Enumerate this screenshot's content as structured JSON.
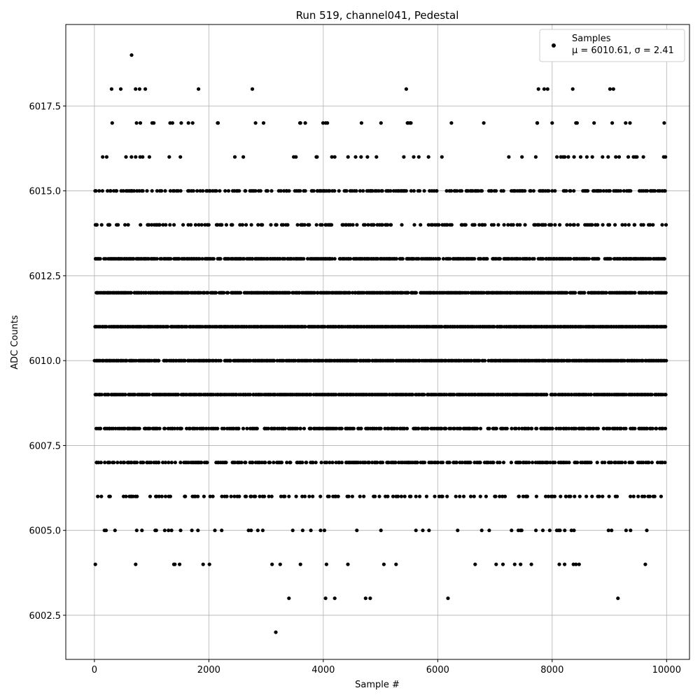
{
  "chart_data": {
    "type": "scatter",
    "title": "Run 519, channel041, Pedestal",
    "xlabel": "Sample #",
    "ylabel": "ADC Counts",
    "xlim": [
      -500,
      10400
    ],
    "ylim": [
      6001.2,
      6019.9
    ],
    "x_ticks": [
      0,
      2000,
      4000,
      6000,
      8000,
      10000
    ],
    "y_ticks": [
      6002.5,
      6005.0,
      6007.5,
      6010.0,
      6012.5,
      6015.0,
      6017.5
    ],
    "x_tick_labels": [
      "0",
      "2000",
      "4000",
      "6000",
      "8000",
      "10000"
    ],
    "y_tick_labels": [
      "6002.5",
      "6005.0",
      "6007.5",
      "6010.0",
      "6012.5",
      "6015.0",
      "6017.5"
    ],
    "grid": true,
    "marker_color": "#000000",
    "legend": {
      "placement": "top-right",
      "series_name": "Samples",
      "stats_label": "μ = 6010.61, σ = 2.41"
    },
    "x_range": [
      0,
      9999
    ],
    "levels": [
      {
        "y": 6009,
        "density": 0.9
      },
      {
        "y": 6010,
        "density": 0.9
      },
      {
        "y": 6011,
        "density": 0.95
      },
      {
        "y": 6012,
        "density": 0.85
      },
      {
        "y": 6013,
        "density": 0.8
      },
      {
        "y": 6008,
        "density": 0.62
      },
      {
        "y": 6015,
        "density": 0.5
      },
      {
        "y": 6007,
        "density": 0.52
      },
      {
        "y": 6014,
        "density": 0.32
      },
      {
        "y": 6006,
        "density": 0.26
      },
      {
        "y": 6016,
        "density": 0.1
      },
      {
        "y": 6005,
        "density": 0.1
      },
      {
        "y": 6017,
        "density": 0.06
      },
      {
        "y": 6004,
        "density": 0.04
      }
    ],
    "sparse_points": [
      {
        "x": 650,
        "y": 6019
      },
      {
        "x": 300,
        "y": 6018
      },
      {
        "x": 460,
        "y": 6018
      },
      {
        "x": 720,
        "y": 6018
      },
      {
        "x": 790,
        "y": 6018
      },
      {
        "x": 890,
        "y": 6018
      },
      {
        "x": 1820,
        "y": 6018
      },
      {
        "x": 2760,
        "y": 6018
      },
      {
        "x": 5450,
        "y": 6018
      },
      {
        "x": 7760,
        "y": 6018
      },
      {
        "x": 7860,
        "y": 6018
      },
      {
        "x": 7920,
        "y": 6018
      },
      {
        "x": 8360,
        "y": 6018
      },
      {
        "x": 9010,
        "y": 6018
      },
      {
        "x": 9070,
        "y": 6018
      },
      {
        "x": 3400,
        "y": 6003
      },
      {
        "x": 4040,
        "y": 6003
      },
      {
        "x": 4200,
        "y": 6003
      },
      {
        "x": 4740,
        "y": 6003
      },
      {
        "x": 4820,
        "y": 6003
      },
      {
        "x": 6180,
        "y": 6003
      },
      {
        "x": 9150,
        "y": 6003
      },
      {
        "x": 3170,
        "y": 6002
      },
      {
        "x": 360,
        "y": 6005
      }
    ]
  }
}
